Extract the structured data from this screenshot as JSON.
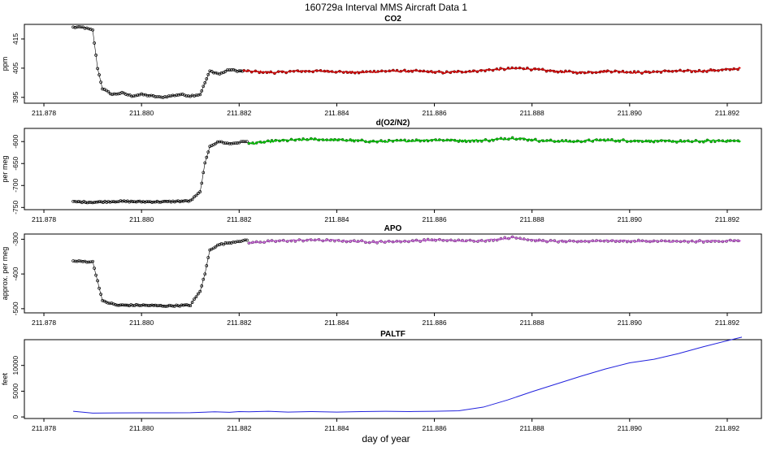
{
  "figure": {
    "title": "160729a   Interval MMS Aircraft Data 1",
    "xlabel": "day of year"
  },
  "chart_data": [
    {
      "type": "scatter",
      "title": "CO2",
      "ylabel": "ppm",
      "xlim": [
        211.8776,
        211.8927
      ],
      "ylim": [
        393.0,
        420.0
      ],
      "xticks": [
        "211.878",
        "211.880",
        "211.882",
        "211.884",
        "211.886",
        "211.888",
        "211.890",
        "211.892"
      ],
      "yticks": [
        395,
        405,
        415
      ],
      "colors": {
        "raw": "#000000",
        "highlight": "#e00000"
      },
      "series": [
        {
          "style": "raw",
          "x": [
            211.8786,
            211.8788,
            211.879,
            211.8791,
            211.8792,
            211.8794,
            211.8796,
            211.8798,
            211.88,
            211.8802,
            211.8804,
            211.8806,
            211.8808,
            211.881,
            211.8812,
            211.8813,
            211.8814,
            211.8816,
            211.8818,
            211.882,
            211.8821
          ],
          "values": [
            419,
            419,
            418,
            405,
            398,
            396,
            396.5,
            395.5,
            396,
            395.5,
            395,
            395.5,
            396,
            395.5,
            396,
            400,
            404,
            403,
            404.5,
            404,
            404
          ]
        },
        {
          "style": "highlight",
          "x": [
            211.8821,
            211.8827,
            211.8832,
            211.8838,
            211.8844,
            211.885,
            211.8856,
            211.8862,
            211.8868,
            211.8872,
            211.8878,
            211.8884,
            211.889,
            211.8896,
            211.8902,
            211.8908,
            211.8914,
            211.892,
            211.8923
          ],
          "values": [
            404,
            403.5,
            404,
            404,
            403.5,
            404,
            404,
            403.5,
            404,
            404.5,
            405,
            404,
            403.5,
            404,
            403.5,
            404,
            404,
            404.5,
            405
          ]
        }
      ]
    },
    {
      "type": "scatter",
      "title": "d(O2/N2)",
      "ylabel": "per meg",
      "xlim": [
        211.8776,
        211.8927
      ],
      "ylim": [
        -755,
        -570
      ],
      "xticks": [
        "211.878",
        "211.880",
        "211.882",
        "211.884",
        "211.886",
        "211.888",
        "211.890",
        "211.892"
      ],
      "yticks": [
        -750,
        -700,
        -650,
        -600
      ],
      "colors": {
        "raw": "#000000",
        "highlight": "#00cc00"
      },
      "series": [
        {
          "style": "raw",
          "x": [
            211.8786,
            211.879,
            211.8795,
            211.88,
            211.8805,
            211.881,
            211.8812,
            211.8813,
            211.8814,
            211.8816,
            211.8818,
            211.882,
            211.8822
          ],
          "values": [
            -737,
            -738,
            -736,
            -737,
            -737,
            -735,
            -715,
            -650,
            -610,
            -600,
            -605,
            -602,
            -598
          ]
        },
        {
          "style": "highlight",
          "x": [
            211.8822,
            211.8828,
            211.8835,
            211.8842,
            211.8848,
            211.8855,
            211.886,
            211.8866,
            211.8871,
            211.8876,
            211.8882,
            211.8888,
            211.8894,
            211.89,
            211.8906,
            211.8912,
            211.8918,
            211.8923
          ],
          "values": [
            -605,
            -598,
            -595,
            -597,
            -600,
            -598,
            -596,
            -598,
            -597,
            -592,
            -598,
            -600,
            -597,
            -598,
            -599,
            -600,
            -598,
            -599
          ]
        }
      ]
    },
    {
      "type": "scatter",
      "title": "APO",
      "ylabel": "approx. per meg",
      "xlim": [
        211.8776,
        211.8927
      ],
      "ylim": [
        -512,
        -285
      ],
      "xticks": [
        "211.878",
        "211.880",
        "211.882",
        "211.884",
        "211.886",
        "211.888",
        "211.890",
        "211.892"
      ],
      "yticks": [
        -500,
        -400,
        -300
      ],
      "colors": {
        "raw": "#000000",
        "highlight": "#cc66dd"
      },
      "series": [
        {
          "style": "raw",
          "x": [
            211.8786,
            211.8788,
            211.879,
            211.8791,
            211.8792,
            211.8795,
            211.88,
            211.8805,
            211.881,
            211.8812,
            211.8813,
            211.8814,
            211.8816,
            211.8818,
            211.882,
            211.8822
          ],
          "values": [
            -363,
            -364,
            -365,
            -420,
            -478,
            -490,
            -490,
            -492,
            -490,
            -450,
            -400,
            -330,
            -315,
            -310,
            -305,
            -303
          ]
        },
        {
          "style": "highlight",
          "x": [
            211.8822,
            211.8828,
            211.8835,
            211.8842,
            211.8848,
            211.8855,
            211.886,
            211.8866,
            211.8871,
            211.8876,
            211.8882,
            211.8888,
            211.8894,
            211.89,
            211.8906,
            211.8912,
            211.8918,
            211.8923
          ],
          "values": [
            -310,
            -305,
            -302,
            -305,
            -308,
            -305,
            -302,
            -305,
            -303,
            -295,
            -305,
            -307,
            -304,
            -305,
            -306,
            -307,
            -305,
            -304
          ]
        }
      ]
    },
    {
      "type": "line",
      "title": "PALTF",
      "ylabel": "feet",
      "xlim": [
        211.8776,
        211.8927
      ],
      "ylim": [
        -300,
        15000
      ],
      "xticks": [
        "211.878",
        "211.880",
        "211.882",
        "211.884",
        "211.886",
        "211.888",
        "211.890",
        "211.892"
      ],
      "yticks": [
        0,
        5000,
        10000
      ],
      "colors": {
        "line": "#2222dd"
      },
      "series": [
        {
          "style": "line",
          "x": [
            211.8786,
            211.879,
            211.8795,
            211.88,
            211.8805,
            211.881,
            211.8815,
            211.8818,
            211.882,
            211.8822,
            211.8826,
            211.883,
            211.8835,
            211.884,
            211.8845,
            211.885,
            211.8855,
            211.886,
            211.8865,
            211.887,
            211.8875,
            211.888,
            211.8885,
            211.889,
            211.8895,
            211.89,
            211.8905,
            211.891,
            211.8915,
            211.892,
            211.8923
          ],
          "values": [
            1100,
            750,
            780,
            800,
            800,
            820,
            1000,
            900,
            1050,
            1000,
            1100,
            950,
            1050,
            950,
            1050,
            1100,
            1050,
            1100,
            1200,
            1900,
            3300,
            4900,
            6400,
            7900,
            9300,
            10500,
            11200,
            12300,
            13600,
            14800,
            15500
          ]
        }
      ]
    }
  ]
}
